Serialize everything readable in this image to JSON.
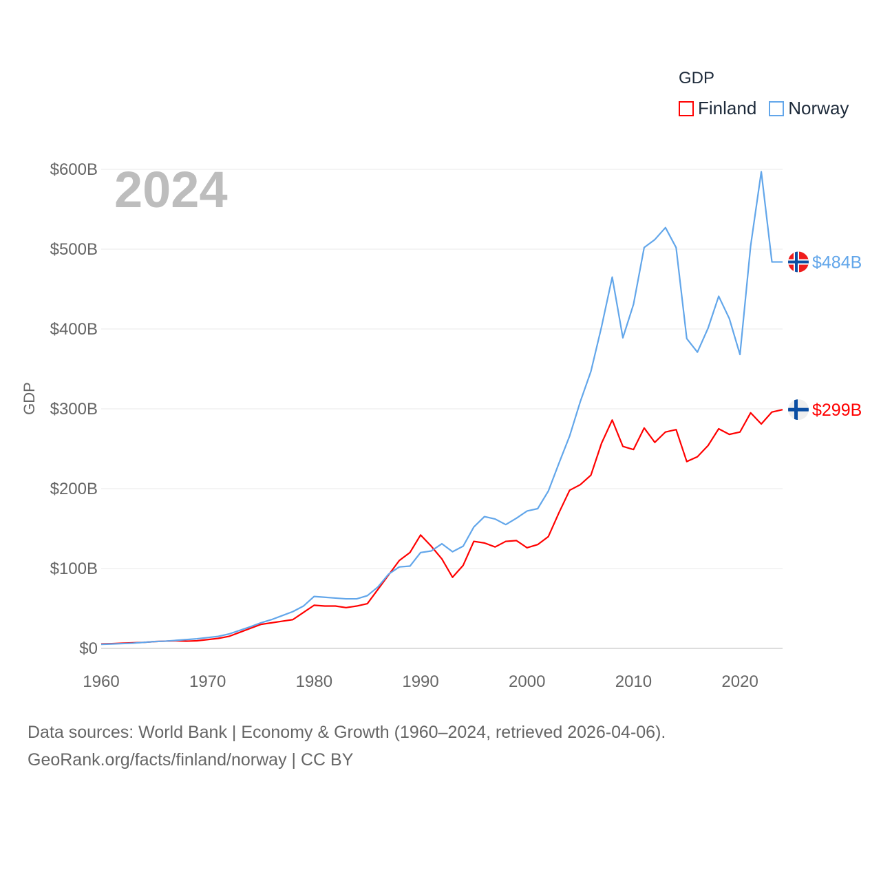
{
  "legend": {
    "title": "GDP",
    "items": [
      {
        "label": "Finland",
        "color": "#ff0000"
      },
      {
        "label": "Norway",
        "color": "#62a6ea"
      }
    ]
  },
  "source": {
    "line1": "Data sources: World Bank | Economy & Growth (1960–2024, retrieved 2026-04-06).",
    "line2": "GeoRank.org/facts/finland/norway | CC BY"
  },
  "chart_data": {
    "type": "line",
    "title": "GDP",
    "year_label": "2024",
    "xlabel": "",
    "ylabel": "GDP",
    "xlim": [
      1960,
      2024
    ],
    "ylim": [
      0,
      600
    ],
    "x_ticks": [
      1960,
      1970,
      1980,
      1990,
      2000,
      2010,
      2020
    ],
    "y_ticks": [
      0,
      100,
      200,
      300,
      400,
      500,
      600
    ],
    "y_tick_labels": [
      "$0",
      "$100B",
      "$200B",
      "$300B",
      "$400B",
      "$500B",
      "$600B"
    ],
    "units": "billion USD",
    "grid": true,
    "legend_position": "top-right",
    "x": [
      1960,
      1961,
      1962,
      1963,
      1964,
      1965,
      1966,
      1967,
      1968,
      1969,
      1970,
      1971,
      1972,
      1973,
      1974,
      1975,
      1976,
      1977,
      1978,
      1979,
      1980,
      1981,
      1982,
      1983,
      1984,
      1985,
      1986,
      1987,
      1988,
      1989,
      1990,
      1991,
      1992,
      1993,
      1994,
      1995,
      1996,
      1997,
      1998,
      1999,
      2000,
      2001,
      2002,
      2003,
      2004,
      2005,
      2006,
      2007,
      2008,
      2009,
      2010,
      2011,
      2012,
      2013,
      2014,
      2015,
      2016,
      2017,
      2018,
      2019,
      2020,
      2021,
      2022,
      2023,
      2024
    ],
    "series": [
      {
        "name": "Finland",
        "color": "#ff0000",
        "end_label": "$299B",
        "values": [
          5.5,
          6,
          6.5,
          7,
          7.5,
          8.5,
          9,
          9.5,
          9,
          9.5,
          11,
          12.5,
          15,
          20,
          25,
          30,
          32,
          34,
          36,
          45,
          54,
          53,
          53,
          51,
          53,
          56,
          74,
          92,
          110,
          120,
          142,
          128,
          112,
          89,
          104,
          134,
          132,
          127,
          134,
          135,
          126,
          130,
          140,
          170,
          198,
          205,
          217,
          257,
          286,
          253,
          249,
          276,
          258,
          271,
          274,
          234,
          240,
          254,
          275,
          268,
          271,
          295,
          281,
          296,
          299
        ]
      },
      {
        "name": "Norway",
        "color": "#62a6ea",
        "end_label": "$484B",
        "values": [
          5,
          5.5,
          6,
          6.5,
          7.5,
          8.5,
          9,
          10,
          11,
          12,
          13.5,
          15,
          18,
          22.5,
          27,
          32,
          36,
          41,
          46,
          53,
          65,
          64,
          63,
          62,
          62,
          66,
          77,
          93,
          102,
          103,
          120,
          122,
          131,
          121,
          128,
          152,
          165,
          162,
          155,
          163,
          172,
          175,
          197,
          232,
          266,
          309,
          347,
          403,
          465,
          389,
          431,
          502,
          512,
          527,
          502,
          388,
          371,
          401,
          441,
          413,
          368,
          504,
          597,
          484,
          484
        ]
      }
    ]
  }
}
